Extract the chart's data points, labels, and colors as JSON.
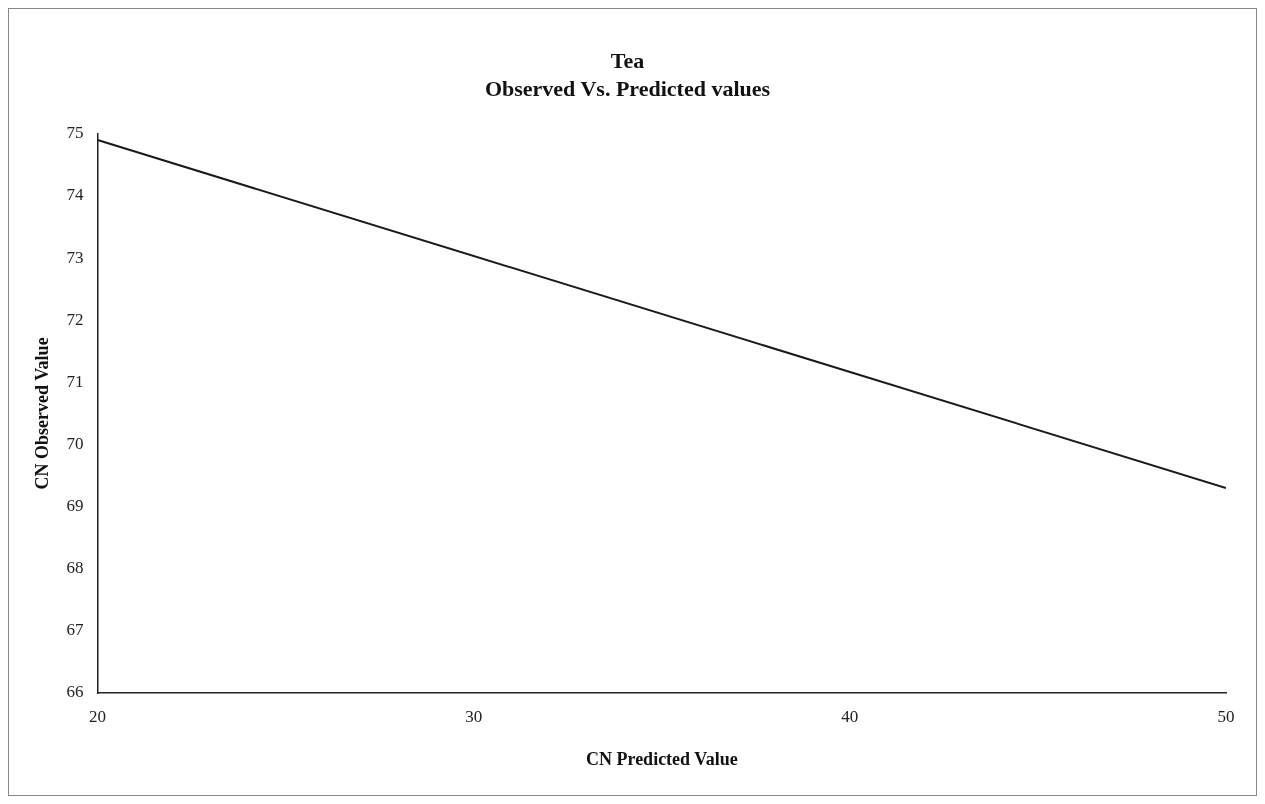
{
  "chart_data": {
    "type": "line",
    "title": "Tea",
    "subtitle": "Observed Vs. Predicted values",
    "xlabel": "CN Predicted Value",
    "ylabel": "CN Observed Value",
    "x": [
      20,
      50
    ],
    "series": [
      {
        "color": "#1a1a1a",
        "values": [
          74.9,
          69.3
        ]
      }
    ],
    "xlim": [
      20,
      50
    ],
    "xticks": [
      20,
      30,
      40,
      50
    ],
    "ylim": [
      66,
      75
    ],
    "yticks": [
      66,
      67,
      68,
      69,
      70,
      71,
      72,
      73,
      74,
      75
    ],
    "grid": false,
    "legend": false,
    "marker": "none",
    "line_style": "solid"
  }
}
